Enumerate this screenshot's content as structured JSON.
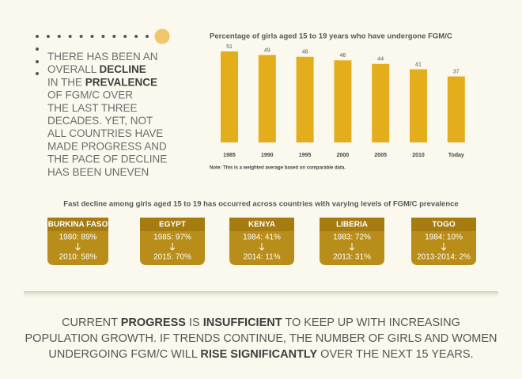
{
  "callout": [
    [
      "THERE HAS BEEN AN"
    ],
    [
      "OVERALL ",
      "DECLINE"
    ],
    [
      "IN THE ",
      "PREVALENCE"
    ],
    [
      "OF FGM/C OVER"
    ],
    [
      "THE LAST THREE"
    ],
    [
      "DECADES. YET, NOT"
    ],
    [
      "ALL COUNTRIES HAVE"
    ],
    [
      "MADE PROGRESS AND"
    ],
    [
      "THE PACE OF DECLINE"
    ],
    [
      "HAS BEEN UNEVEN"
    ]
  ],
  "chart_data": {
    "type": "bar",
    "title": "Percentage of girls aged 15 to 19 years who have undergone FGM/C",
    "categories": [
      "1985",
      "1990",
      "1995",
      "2000",
      "2005",
      "2010",
      "Today"
    ],
    "values": [
      51,
      49,
      48,
      46,
      44,
      41,
      37
    ],
    "color": "#e3ad1c",
    "note": "Note: This is a weighted average based on comparable data."
  },
  "subtitle": "Fast decline among girls aged 15 to 19 has occurred across countries with varying levels of FGM/C prevalence",
  "countries": [
    {
      "name": "BURKINA FASO",
      "from": "1980: 89%",
      "to": "2010: 58%"
    },
    {
      "name": "EGYPT",
      "from": "1985: 97%",
      "to": "2015: 70%"
    },
    {
      "name": "KENYA",
      "from": "1984: 41%",
      "to": "2014: 11%"
    },
    {
      "name": "LIBERIA",
      "from": "1983: 72%",
      "to": "2013: 31%"
    },
    {
      "name": "TOGO",
      "from": "1984: 10%",
      "to": "2013-2014: 2%"
    }
  ],
  "footer": [
    [
      "CURRENT ",
      "PROGRESS",
      " IS ",
      "INSUFFICIENT",
      " TO KEEP UP WITH INCREASING"
    ],
    [
      "POPULATION GROWTH. IF TRENDS CONTINUE, THE NUMBER OF GIRLS AND WOMEN"
    ],
    [
      "UNDERGOING FGM/C WILL ",
      "RISE SIGNIFICANTLY",
      " OVER THE NEXT 15 YEARS."
    ]
  ]
}
